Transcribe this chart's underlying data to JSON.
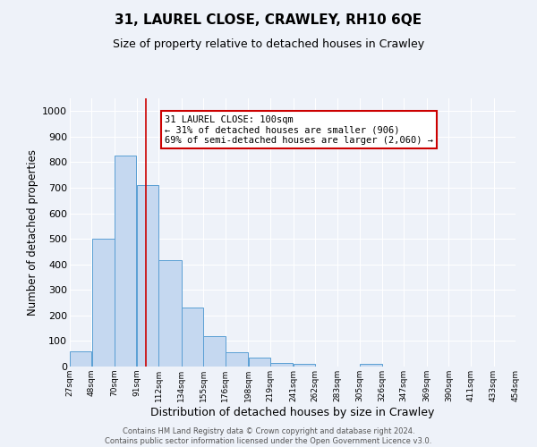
{
  "title": "31, LAUREL CLOSE, CRAWLEY, RH10 6QE",
  "subtitle": "Size of property relative to detached houses in Crawley",
  "xlabel": "Distribution of detached houses by size in Crawley",
  "ylabel": "Number of detached properties",
  "bin_edges": [
    27,
    48,
    70,
    91,
    112,
    134,
    155,
    176,
    198,
    219,
    241,
    262,
    283,
    305,
    326,
    347,
    369,
    390,
    411,
    433,
    454
  ],
  "bar_heights": [
    60,
    500,
    825,
    710,
    415,
    230,
    118,
    57,
    35,
    15,
    12,
    0,
    0,
    12,
    0,
    0,
    0,
    0,
    0,
    0
  ],
  "bar_color": "#c5d8f0",
  "bar_edge_color": "#5a9fd4",
  "property_size": 100,
  "red_line_color": "#cc0000",
  "annotation_line1": "31 LAUREL CLOSE: 100sqm",
  "annotation_line2": "← 31% of detached houses are smaller (906)",
  "annotation_line3": "69% of semi-detached houses are larger (2,060) →",
  "annotation_box_edge_color": "#cc0000",
  "annotation_box_face_color": "#ffffff",
  "ylim": [
    0,
    1050
  ],
  "yticks": [
    0,
    100,
    200,
    300,
    400,
    500,
    600,
    700,
    800,
    900,
    1000
  ],
  "title_fontsize": 11,
  "subtitle_fontsize": 9,
  "xlabel_fontsize": 9,
  "ylabel_fontsize": 8.5,
  "footer_text": "Contains HM Land Registry data © Crown copyright and database right 2024.\nContains public sector information licensed under the Open Government Licence v3.0.",
  "background_color": "#eef2f9",
  "grid_color": "#ffffff"
}
